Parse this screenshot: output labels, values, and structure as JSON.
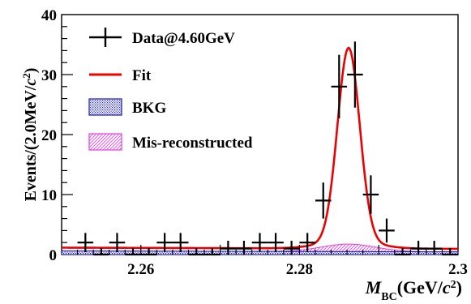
{
  "chart_data": {
    "type": "histogram_fit",
    "xlabel": {
      "main": "M",
      "sub": "BC",
      "unit_open": "(GeV/",
      "unit_c": "c",
      "unit_sup": "2",
      "unit_close": ")"
    },
    "ylabel": {
      "before": "Events/(2.0MeV/",
      "c": "c",
      "sup": "2",
      "after": ")"
    },
    "xlim": [
      2.25,
      2.3
    ],
    "ylim": [
      0,
      40
    ],
    "x_ticks": [
      2.26,
      2.28,
      2.3
    ],
    "x_tick_labels": [
      "2.26",
      "2.28",
      "2.3"
    ],
    "y_ticks": [
      0,
      10,
      20,
      30,
      40
    ],
    "y_tick_labels": [
      "0",
      "10",
      "20",
      "30",
      "40"
    ],
    "bin_width": 0.002,
    "data": {
      "name": "Data@4.60GeV",
      "x": [
        2.253,
        2.255,
        2.257,
        2.259,
        2.261,
        2.263,
        2.265,
        2.267,
        2.269,
        2.271,
        2.273,
        2.275,
        2.277,
        2.279,
        2.281,
        2.283,
        2.285,
        2.287,
        2.289,
        2.291,
        2.293,
        2.295,
        2.297,
        2.299
      ],
      "y": [
        2,
        0,
        2,
        0,
        0,
        2,
        2,
        0,
        0,
        1,
        1,
        2,
        2,
        1,
        2,
        9,
        28,
        30,
        10,
        4,
        0,
        1,
        1,
        0
      ],
      "err": [
        1.6,
        1.1,
        1.6,
        1.1,
        1.1,
        1.6,
        1.6,
        1.1,
        1.1,
        1.3,
        1.3,
        1.6,
        1.6,
        1.3,
        1.6,
        3.0,
        5.3,
        5.5,
        3.2,
        2.0,
        1.1,
        1.3,
        1.3,
        1.1
      ]
    },
    "fit": {
      "name": "Fit",
      "color": "#ee0000",
      "baseline_left": 1.15,
      "baseline_right": 0.95,
      "peak_mean": 2.2862,
      "peak_amplitude": 32.2,
      "peak_sigma": 0.0014
    },
    "bkg": {
      "name": "BKG",
      "color": "#1a1acc",
      "level_left": 0.6,
      "level_right": 0.45
    },
    "misrec": {
      "name": "Mis-reconstructed",
      "color": "#e040e0",
      "mean": 2.2862,
      "amplitude": 1.25,
      "sigma": 0.0034
    },
    "legend": {
      "position": "top-left",
      "entries": [
        {
          "key": "data",
          "label": "Data@4.60GeV"
        },
        {
          "key": "fit",
          "label": "Fit"
        },
        {
          "key": "bkg",
          "label": "BKG"
        },
        {
          "key": "misrec",
          "label": "Mis-reconstructed"
        }
      ]
    }
  }
}
